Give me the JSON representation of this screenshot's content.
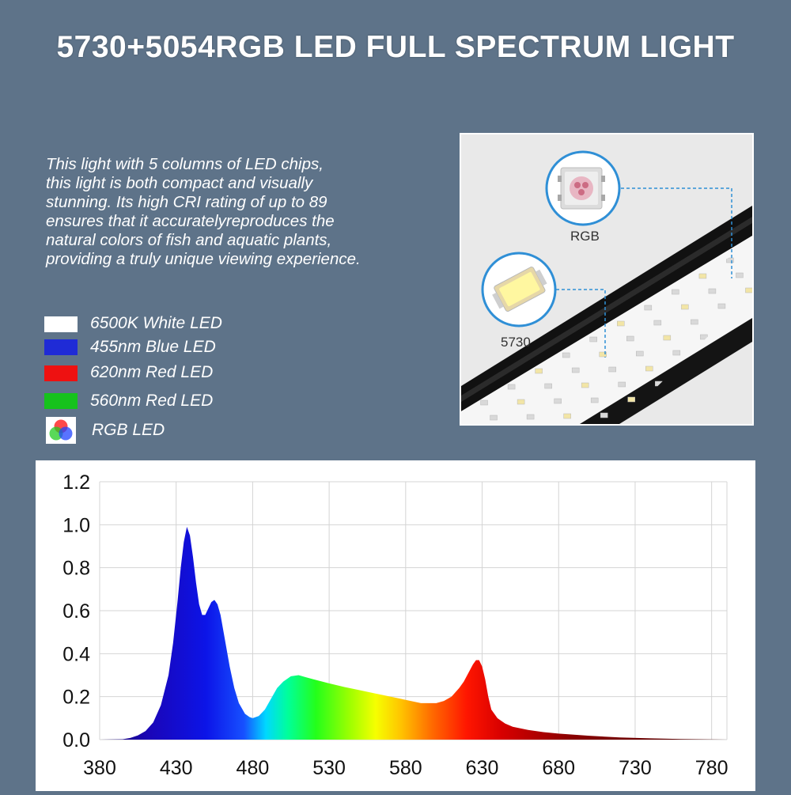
{
  "header": {
    "title": "5730+5054RGB LED FULL SPECTRUM LIGHT"
  },
  "description": {
    "lines": [
      "This light with 5 columns of LED chips,",
      "this light is both compact and visually",
      "stunning. Its high CRI rating of up to 89",
      "ensures that it accuratelyreproduces the",
      "natural colors of fish and aquatic plants,",
      "providing a truly unique viewing experience."
    ]
  },
  "legend": {
    "items": [
      {
        "label": "6500K White LED",
        "color": "#ffffff"
      },
      {
        "label": "455nm Blue LED",
        "color": "#1f2bd6"
      },
      {
        "label": "620nm Red LED",
        "color": "#ee1111"
      },
      {
        "label": "560nm Red LED",
        "color": "#16c21c"
      },
      {
        "label": "RGB LED",
        "icon": "rgb-circles-icon"
      }
    ]
  },
  "product_photo": {
    "callouts": [
      {
        "label": "RGB",
        "icon": "rgb-chip-icon"
      },
      {
        "label": "5730",
        "icon": "white-chip-icon"
      }
    ]
  },
  "chart_data": {
    "type": "area",
    "title": "",
    "xlabel": "",
    "ylabel": "",
    "xlim": [
      380,
      790
    ],
    "ylim": [
      0,
      1.2
    ],
    "grid": true,
    "legend": "none",
    "xticks": [
      380,
      430,
      480,
      530,
      580,
      630,
      680,
      730,
      780
    ],
    "yticks": [
      "0.0",
      "0.2",
      "0.4",
      "0.6",
      "0.8",
      "1.0",
      "1.2"
    ],
    "fill": "spectrum gradient (violet-blue to deep red)",
    "series": [
      {
        "x": [
          380,
          395,
          400,
          405,
          410,
          415,
          420,
          425,
          428,
          431,
          433,
          435,
          437,
          439,
          441,
          443,
          445,
          447,
          449,
          451,
          453,
          455,
          457,
          459,
          461,
          463,
          465,
          468,
          471,
          475,
          478,
          480,
          484,
          488,
          492,
          496,
          500,
          505,
          510,
          515,
          520,
          530,
          540,
          550,
          560,
          570,
          580,
          590,
          600,
          605,
          610,
          615,
          618,
          621,
          624,
          626,
          628,
          630,
          632,
          634,
          636,
          640,
          645,
          650,
          660,
          670,
          680,
          700,
          720,
          740,
          760,
          790
        ],
        "y": [
          0,
          0.002,
          0.008,
          0.02,
          0.04,
          0.08,
          0.16,
          0.3,
          0.45,
          0.65,
          0.8,
          0.92,
          0.99,
          0.95,
          0.85,
          0.73,
          0.63,
          0.58,
          0.58,
          0.61,
          0.64,
          0.65,
          0.63,
          0.58,
          0.5,
          0.42,
          0.34,
          0.24,
          0.17,
          0.12,
          0.105,
          0.1,
          0.11,
          0.14,
          0.19,
          0.24,
          0.27,
          0.295,
          0.3,
          0.29,
          0.28,
          0.262,
          0.245,
          0.23,
          0.215,
          0.2,
          0.185,
          0.17,
          0.17,
          0.18,
          0.2,
          0.24,
          0.27,
          0.31,
          0.35,
          0.37,
          0.37,
          0.34,
          0.28,
          0.2,
          0.14,
          0.1,
          0.075,
          0.06,
          0.045,
          0.035,
          0.028,
          0.018,
          0.01,
          0.006,
          0.003,
          0
        ]
      }
    ]
  }
}
